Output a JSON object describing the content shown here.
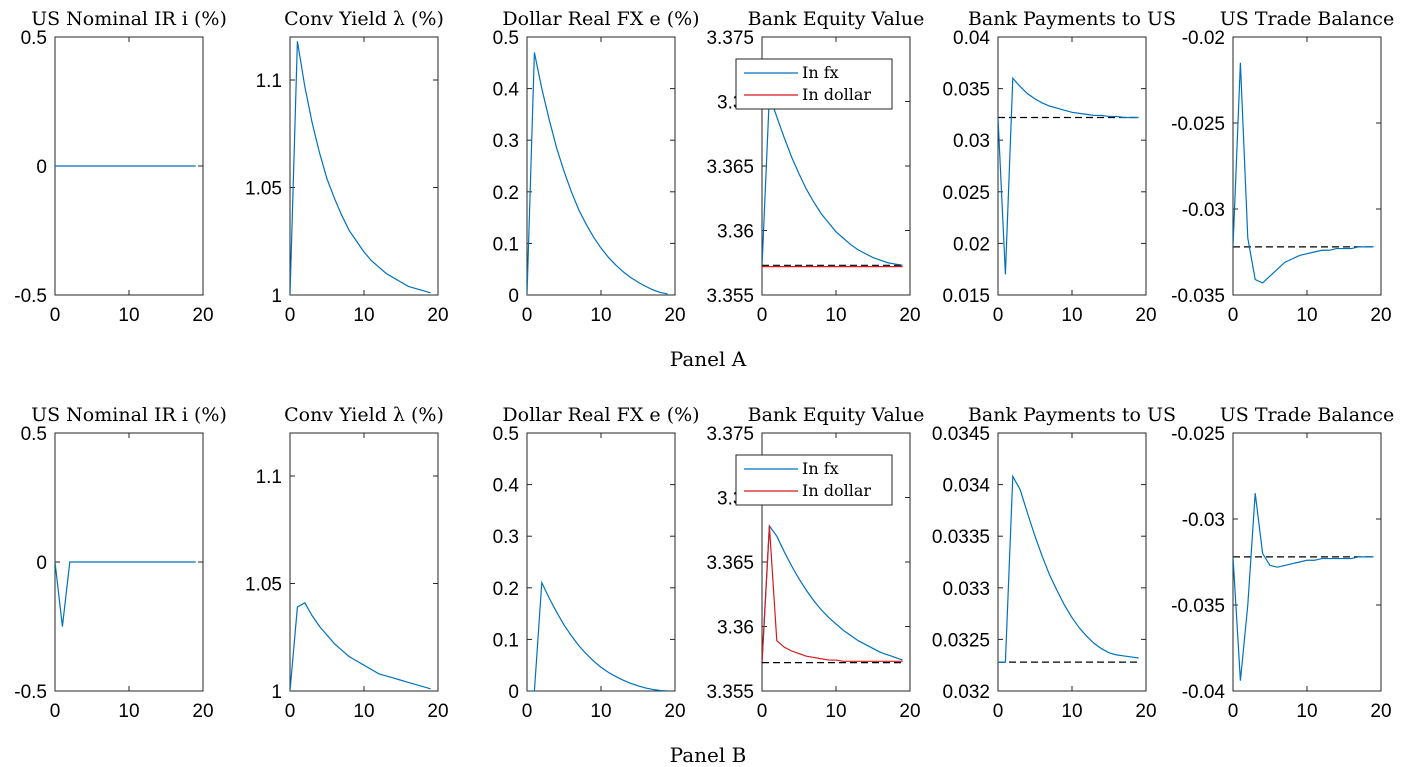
{
  "chart_data": [
    {
      "type": "line",
      "panel": "Panel A",
      "title": "US Nominal IR i (%)",
      "xlim": [
        0,
        20
      ],
      "ylim": [
        -0.5,
        0.5
      ],
      "xticks": [
        "0",
        "10",
        "20"
      ],
      "yticks": [
        "-0.5",
        "0",
        "0.5"
      ],
      "grid": false,
      "series": [
        {
          "color": "#0072BD",
          "x": [
            0,
            19
          ],
          "y": [
            0,
            0
          ]
        }
      ]
    },
    {
      "type": "line",
      "panel": "Panel A",
      "title": "Conv Yield λ (%)",
      "xlim": [
        0,
        20
      ],
      "ylim": [
        1,
        1.12
      ],
      "xticks": [
        "0",
        "10",
        "20"
      ],
      "yticks": [
        "1",
        "1.05",
        "1.1"
      ],
      "grid": false,
      "series": [
        {
          "color": "#0072BD",
          "x": [
            0,
            1,
            2,
            3,
            4,
            5,
            6,
            7,
            8,
            9,
            10,
            11,
            12,
            13,
            14,
            15,
            16,
            17,
            18,
            19
          ],
          "y": [
            1.0,
            1.118,
            1.097,
            1.08,
            1.066,
            1.054,
            1.045,
            1.037,
            1.03,
            1.025,
            1.02,
            1.016,
            1.013,
            1.01,
            1.008,
            1.006,
            1.004,
            1.003,
            1.002,
            1.001
          ]
        }
      ]
    },
    {
      "type": "line",
      "panel": "Panel A",
      "title": "Dollar Real FX e (%)",
      "xlim": [
        0,
        20
      ],
      "ylim": [
        0,
        0.5
      ],
      "xticks": [
        "0",
        "10",
        "20"
      ],
      "yticks": [
        "0",
        "0.1",
        "0.2",
        "0.3",
        "0.4",
        "0.5"
      ],
      "grid": false,
      "series": [
        {
          "color": "#0072BD",
          "x": [
            0,
            1,
            2,
            3,
            4,
            5,
            6,
            7,
            8,
            9,
            10,
            11,
            12,
            13,
            14,
            15,
            16,
            17,
            18,
            19
          ],
          "y": [
            0.0,
            0.47,
            0.4,
            0.34,
            0.285,
            0.24,
            0.2,
            0.165,
            0.137,
            0.112,
            0.091,
            0.073,
            0.058,
            0.045,
            0.034,
            0.025,
            0.017,
            0.01,
            0.005,
            0.002
          ]
        }
      ]
    },
    {
      "type": "line",
      "panel": "Panel A",
      "title": "Bank Equity Value",
      "xlim": [
        0,
        20
      ],
      "ylim": [
        3.355,
        3.375
      ],
      "xticks": [
        "0",
        "10",
        "20"
      ],
      "yticks": [
        "3.355",
        "3.36",
        "3.365",
        "3.37",
        "3.375"
      ],
      "grid": false,
      "legend_location": "top",
      "series": [
        {
          "name": "In fx",
          "color": "#0072BD",
          "x": [
            0,
            1,
            2,
            3,
            4,
            5,
            6,
            7,
            8,
            9,
            10,
            11,
            12,
            13,
            14,
            15,
            16,
            17,
            18,
            19
          ],
          "y": [
            3.3572,
            3.3705,
            3.3688,
            3.3672,
            3.3657,
            3.3644,
            3.3632,
            3.3622,
            3.3613,
            3.3606,
            3.3599,
            3.3594,
            3.3589,
            3.3585,
            3.3582,
            3.3579,
            3.3577,
            3.3575,
            3.3574,
            3.3573
          ]
        },
        {
          "name": "In dollar",
          "color": "#D7191C",
          "x": [
            0,
            19
          ],
          "y": [
            3.3572,
            3.3572
          ]
        },
        {
          "color": "#000000",
          "dashed": true,
          "x": [
            0,
            19
          ],
          "y": [
            3.3573,
            3.3573
          ]
        }
      ]
    },
    {
      "type": "line",
      "panel": "Panel A",
      "title": "Bank Payments to US",
      "xlim": [
        0,
        20
      ],
      "ylim": [
        0.015,
        0.04
      ],
      "xticks": [
        "0",
        "10",
        "20"
      ],
      "yticks": [
        "0.015",
        "0.02",
        "0.025",
        "0.03",
        "0.035",
        "0.04"
      ],
      "grid": false,
      "series": [
        {
          "color": "#000000",
          "dashed": true,
          "x": [
            0,
            19
          ],
          "y": [
            0.0322,
            0.0322
          ]
        },
        {
          "color": "#0072BD",
          "x": [
            0,
            1,
            2,
            3,
            4,
            5,
            6,
            7,
            8,
            9,
            10,
            11,
            12,
            13,
            14,
            15,
            16,
            17,
            18,
            19
          ],
          "y": [
            0.0322,
            0.017,
            0.036,
            0.0352,
            0.0345,
            0.034,
            0.0336,
            0.0333,
            0.0331,
            0.0329,
            0.0327,
            0.0326,
            0.0325,
            0.0324,
            0.0324,
            0.0323,
            0.0323,
            0.0322,
            0.0322,
            0.0322
          ]
        }
      ]
    },
    {
      "type": "line",
      "panel": "Panel A",
      "title": "US Trade Balance",
      "xlim": [
        0,
        20
      ],
      "ylim": [
        -0.035,
        -0.02
      ],
      "xticks": [
        "0",
        "10",
        "20"
      ],
      "yticks": [
        "-0.035",
        "-0.03",
        "-0.025",
        "-0.02"
      ],
      "grid": false,
      "series": [
        {
          "color": "#000000",
          "dashed": true,
          "x": [
            0,
            19
          ],
          "y": [
            -0.0322,
            -0.0322
          ]
        },
        {
          "color": "#0072BD",
          "x": [
            0,
            1,
            2,
            3,
            4,
            5,
            6,
            7,
            8,
            9,
            10,
            11,
            12,
            13,
            14,
            15,
            16,
            17,
            18,
            19
          ],
          "y": [
            -0.0322,
            -0.0215,
            -0.0317,
            -0.0341,
            -0.0343,
            -0.0339,
            -0.0335,
            -0.0331,
            -0.0329,
            -0.0327,
            -0.0326,
            -0.0325,
            -0.0324,
            -0.0324,
            -0.0323,
            -0.0323,
            -0.0323,
            -0.0322,
            -0.0322,
            -0.0322
          ]
        }
      ]
    },
    {
      "type": "line",
      "panel": "Panel B",
      "title": "US Nominal IR i (%)",
      "xlim": [
        0,
        20
      ],
      "ylim": [
        -0.5,
        0.5
      ],
      "xticks": [
        "0",
        "10",
        "20"
      ],
      "yticks": [
        "-0.5",
        "0",
        "0.5"
      ],
      "grid": false,
      "series": [
        {
          "color": "#0072BD",
          "x": [
            0,
            1,
            2,
            19
          ],
          "y": [
            0,
            -0.25,
            0,
            0
          ]
        }
      ]
    },
    {
      "type": "line",
      "panel": "Panel B",
      "title": "Conv Yield λ (%)",
      "xlim": [
        0,
        20
      ],
      "ylim": [
        1,
        1.12
      ],
      "xticks": [
        "0",
        "10",
        "20"
      ],
      "yticks": [
        "1",
        "1.05",
        "1.1"
      ],
      "grid": false,
      "series": [
        {
          "color": "#0072BD",
          "x": [
            0,
            1,
            2,
            3,
            4,
            5,
            6,
            7,
            8,
            9,
            10,
            11,
            12,
            13,
            14,
            15,
            16,
            17,
            18,
            19
          ],
          "y": [
            1.0,
            1.039,
            1.041,
            1.035,
            1.03,
            1.026,
            1.022,
            1.019,
            1.016,
            1.014,
            1.012,
            1.01,
            1.008,
            1.007,
            1.006,
            1.005,
            1.004,
            1.003,
            1.002,
            1.001
          ]
        }
      ]
    },
    {
      "type": "line",
      "panel": "Panel B",
      "title": "Dollar Real FX e (%)",
      "xlim": [
        0,
        20
      ],
      "ylim": [
        0,
        0.5
      ],
      "xticks": [
        "0",
        "10",
        "20"
      ],
      "yticks": [
        "0",
        "0.1",
        "0.2",
        "0.3",
        "0.4",
        "0.5"
      ],
      "grid": false,
      "series": [
        {
          "color": "#0072BD",
          "x": [
            0,
            1,
            2,
            3,
            4,
            5,
            6,
            7,
            8,
            9,
            10,
            11,
            12,
            13,
            14,
            15,
            16,
            17,
            18,
            19
          ],
          "y": [
            0.0,
            0.0,
            0.21,
            0.18,
            0.153,
            0.128,
            0.107,
            0.088,
            0.072,
            0.058,
            0.046,
            0.036,
            0.028,
            0.021,
            0.015,
            0.01,
            0.006,
            0.003,
            0.001,
            0.0
          ]
        }
      ]
    },
    {
      "type": "line",
      "panel": "Panel B",
      "title": "Bank Equity Value",
      "xlim": [
        0,
        20
      ],
      "ylim": [
        3.355,
        3.375
      ],
      "xticks": [
        "0",
        "10",
        "20"
      ],
      "yticks": [
        "3.355",
        "3.36",
        "3.365",
        "3.37",
        "3.375"
      ],
      "grid": false,
      "legend_location": "top",
      "series": [
        {
          "name": "In fx",
          "color": "#0072BD",
          "x": [
            0,
            1,
            2,
            3,
            4,
            5,
            6,
            7,
            8,
            9,
            10,
            11,
            12,
            13,
            14,
            15,
            16,
            17,
            18,
            19
          ],
          "y": [
            3.3572,
            3.3678,
            3.367,
            3.3658,
            3.3647,
            3.3637,
            3.3628,
            3.362,
            3.3613,
            3.3607,
            3.3602,
            3.3597,
            3.3593,
            3.3589,
            3.3586,
            3.3583,
            3.358,
            3.3578,
            3.3576,
            3.3574
          ]
        },
        {
          "name": "In dollar",
          "color": "#D7191C",
          "x": [
            0,
            1,
            2,
            3,
            4,
            5,
            6,
            7,
            8,
            9,
            10,
            11,
            12,
            13,
            14,
            15,
            16,
            17,
            18,
            19
          ],
          "y": [
            3.3572,
            3.3678,
            3.3589,
            3.3584,
            3.3581,
            3.3579,
            3.3577,
            3.3576,
            3.3575,
            3.3574,
            3.3574,
            3.3573,
            3.3573,
            3.3573,
            3.3573,
            3.3573,
            3.3573,
            3.3573,
            3.3573,
            3.3573
          ]
        },
        {
          "color": "#000000",
          "dashed": true,
          "x": [
            0,
            19
          ],
          "y": [
            3.3572,
            3.3572
          ]
        }
      ]
    },
    {
      "type": "line",
      "panel": "Panel B",
      "title": "Bank Payments to US",
      "xlim": [
        0,
        20
      ],
      "ylim": [
        0.032,
        0.0345
      ],
      "xticks": [
        "0",
        "10",
        "20"
      ],
      "yticks": [
        "0.032",
        "0.0325",
        "0.033",
        "0.0335",
        "0.034",
        "0.0345"
      ],
      "grid": false,
      "series": [
        {
          "color": "#000000",
          "dashed": true,
          "x": [
            0,
            19
          ],
          "y": [
            0.03228,
            0.03228
          ]
        },
        {
          "color": "#0072BD",
          "x": [
            0,
            1,
            2,
            3,
            4,
            5,
            6,
            7,
            8,
            9,
            10,
            11,
            12,
            13,
            14,
            15,
            16,
            17,
            18,
            19
          ],
          "y": [
            0.03228,
            0.03228,
            0.03408,
            0.03395,
            0.03372,
            0.0335,
            0.0333,
            0.03312,
            0.03297,
            0.03283,
            0.03271,
            0.03261,
            0.03253,
            0.03246,
            0.03241,
            0.03237,
            0.03235,
            0.03234,
            0.03233,
            0.03232
          ]
        }
      ]
    },
    {
      "type": "line",
      "panel": "Panel B",
      "title": "US Trade Balance",
      "xlim": [
        0,
        20
      ],
      "ylim": [
        -0.04,
        -0.025
      ],
      "xticks": [
        "0",
        "10",
        "20"
      ],
      "yticks": [
        "-0.04",
        "-0.035",
        "-0.03",
        "-0.025"
      ],
      "grid": false,
      "series": [
        {
          "color": "#000000",
          "dashed": true,
          "x": [
            0,
            19
          ],
          "y": [
            -0.0322,
            -0.0322
          ]
        },
        {
          "color": "#0072BD",
          "x": [
            0,
            1,
            2,
            3,
            4,
            5,
            6,
            7,
            8,
            9,
            10,
            11,
            12,
            13,
            14,
            15,
            16,
            17,
            18,
            19
          ],
          "y": [
            -0.0322,
            -0.0394,
            -0.035,
            -0.0285,
            -0.032,
            -0.0327,
            -0.0328,
            -0.0327,
            -0.0326,
            -0.0325,
            -0.0324,
            -0.0324,
            -0.0323,
            -0.0323,
            -0.0323,
            -0.0323,
            -0.0323,
            -0.0322,
            -0.0322,
            -0.0322
          ]
        }
      ]
    }
  ],
  "panel_labels": [
    "Panel A",
    "Panel B"
  ]
}
